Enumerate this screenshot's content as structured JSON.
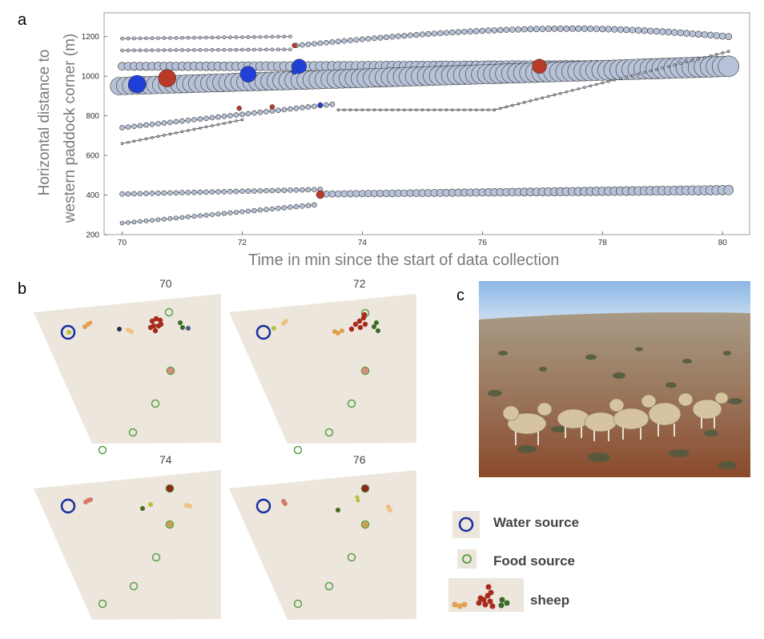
{
  "panels": {
    "a": {
      "letter": "a"
    },
    "b": {
      "letter": "b"
    },
    "c": {
      "letter": "c"
    }
  },
  "chart_data": {
    "type": "scatter",
    "title": "",
    "xlabel": "Time in min since the start of data collection",
    "ylabel_line1": "Horizontal distance to",
    "ylabel_line2": "western paddock corner (m)",
    "xlim": [
      69.7,
      80.45
    ],
    "ylim": [
      200,
      1320
    ],
    "xticks": [
      70,
      72,
      74,
      76,
      78,
      80
    ],
    "yticks": [
      200,
      400,
      600,
      800,
      1000,
      1200
    ],
    "grid": false,
    "colors": {
      "marker_fill": "#b7c2d8",
      "marker_stroke": "#3a3a3a",
      "water_event": "#1f3fd8",
      "food_event": "#b83a28",
      "line": "#3a3a3a"
    },
    "series": [
      {
        "start": [
          70.0,
          1190
        ],
        "end": [
          72.8,
          1200
        ],
        "size_start": 2,
        "size_end": 2
      },
      {
        "start": [
          72.9,
          1155
        ],
        "end": [
          80.1,
          1200
        ],
        "peak": [
          77.5,
          1240
        ],
        "size_start": 3,
        "size_end": 4
      },
      {
        "start": [
          70.0,
          1130
        ],
        "end": [
          72.8,
          1135
        ],
        "size_start": 2,
        "size_end": 2
      },
      {
        "start": [
          70.0,
          1050
        ],
        "end": [
          80.1,
          1050
        ],
        "size_start": 5,
        "size_end": 8
      },
      {
        "start": [
          69.95,
          950
        ],
        "end": [
          80.1,
          1050
        ],
        "size_start": 11,
        "size_end": 13
      },
      {
        "start": [
          70.0,
          740
        ],
        "end": [
          73.5,
          858
        ],
        "size_start": 3,
        "size_end": 3
      },
      {
        "start": [
          70.0,
          660
        ],
        "end": [
          72.0,
          780
        ],
        "size_start": 1.5,
        "size_end": 1.5
      },
      {
        "start": [
          73.6,
          830
        ],
        "end": [
          76.2,
          830
        ],
        "size_start": 1.5,
        "size_end": 1.5
      },
      {
        "start": [
          76.2,
          830
        ],
        "end": [
          80.1,
          1125
        ],
        "size_start": 1.5,
        "size_end": 1.5
      },
      {
        "start": [
          70.0,
          405
        ],
        "end": [
          73.3,
          428
        ],
        "size_start": 3,
        "size_end": 3
      },
      {
        "start": [
          73.3,
          405
        ],
        "end": [
          80.1,
          425
        ],
        "size_start": 4,
        "size_end": 6
      },
      {
        "start": [
          70.0,
          258
        ],
        "end": [
          73.2,
          350
        ],
        "size_start": 2.5,
        "size_end": 3
      }
    ],
    "events": [
      {
        "x": 70.25,
        "y": 960,
        "type": "water",
        "size": 11
      },
      {
        "x": 70.75,
        "y": 990,
        "type": "food",
        "size": 11
      },
      {
        "x": 72.1,
        "y": 1010,
        "type": "water",
        "size": 10
      },
      {
        "x": 72.95,
        "y": 1050,
        "type": "water",
        "size": 9
      },
      {
        "x": 76.95,
        "y": 1050,
        "type": "food",
        "size": 9
      },
      {
        "x": 72.87,
        "y": 1155,
        "type": "food",
        "size": 3
      },
      {
        "x": 72.87,
        "y": 1025,
        "type": "water",
        "size": 4
      },
      {
        "x": 71.95,
        "y": 838,
        "type": "food",
        "size": 3
      },
      {
        "x": 72.5,
        "y": 845,
        "type": "food",
        "size": 3
      },
      {
        "x": 73.3,
        "y": 855,
        "type": "water",
        "size": 3
      },
      {
        "x": 73.3,
        "y": 402,
        "type": "food",
        "size": 5
      }
    ]
  },
  "maps": [
    {
      "title": "70"
    },
    {
      "title": "72"
    },
    {
      "title": "74"
    },
    {
      "title": "76"
    }
  ],
  "legend": {
    "water": "Water source",
    "food": "Food source",
    "sheep": "sheep"
  }
}
